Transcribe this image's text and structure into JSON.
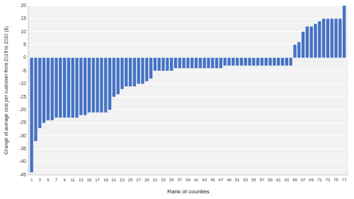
{
  "chart_data": {
    "type": "bar",
    "x": [
      1,
      2,
      3,
      4,
      5,
      6,
      7,
      8,
      9,
      10,
      11,
      12,
      13,
      14,
      15,
      16,
      17,
      18,
      19,
      20,
      21,
      22,
      23,
      24,
      25,
      26,
      27,
      28,
      29,
      30,
      31,
      32,
      33,
      34,
      35,
      36,
      37,
      38,
      39,
      40,
      41,
      42,
      43,
      44,
      45,
      46,
      47,
      48,
      49,
      50,
      51,
      52,
      53,
      54,
      55,
      56,
      57,
      58,
      59,
      60,
      61,
      62,
      63,
      64,
      65,
      66,
      67,
      68,
      69,
      70,
      71,
      72,
      73,
      74,
      75,
      76,
      77
    ],
    "values": [
      -44,
      -32,
      -27,
      -25,
      -24,
      -24,
      -23,
      -23,
      -23,
      -23,
      -23,
      -23,
      -22,
      -22,
      -21,
      -21,
      -21,
      -21,
      -21,
      -20,
      -15,
      -14,
      -12,
      -11,
      -11,
      -11,
      -10,
      -10,
      -9,
      -8,
      -5,
      -5,
      -5,
      -5,
      -5,
      -4,
      -4,
      -4,
      -4,
      -4,
      -4,
      -4,
      -4,
      -4,
      -4,
      -4,
      -4,
      -3,
      -3,
      -3,
      -3,
      -3,
      -3,
      -3,
      -3,
      -3,
      -3,
      -3,
      -3,
      -3,
      -3,
      -3,
      -3,
      -3,
      5,
      6,
      10,
      12,
      12,
      13,
      14,
      15,
      15,
      15,
      15,
      15,
      20
    ],
    "color": "#4472c4",
    "x_label": "Rank of counties",
    "y_label": "Change of average cost per customer from 2019 to 2020 ($)",
    "xlim": [
      0.2,
      78
    ],
    "xticks": [
      1,
      3,
      5,
      7,
      9,
      11,
      13,
      15,
      17,
      19,
      21,
      23,
      25,
      27,
      29,
      31,
      33,
      35,
      37,
      39,
      41,
      43,
      45,
      47,
      49,
      51,
      53,
      55,
      57,
      59,
      61,
      63,
      65,
      67,
      69,
      71,
      73,
      75,
      77
    ],
    "ylim": [
      -45,
      20
    ],
    "yticks": [
      -45,
      -40,
      -35,
      -30,
      -25,
      -20,
      -15,
      -10,
      -5,
      0,
      5,
      10,
      15,
      20
    ],
    "grid": true
  }
}
